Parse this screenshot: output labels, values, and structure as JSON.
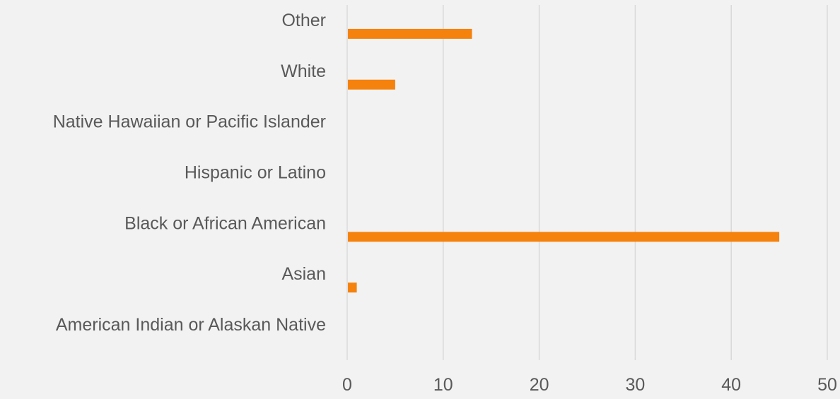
{
  "chart_data": {
    "type": "bar",
    "orientation": "horizontal",
    "title": "",
    "xlabel": "",
    "ylabel": "",
    "categories": [
      "American Indian or Alaskan Native",
      "Asian",
      "Black or African American",
      "Hispanic or Latino",
      "Native Hawaiian or Pacific Islander",
      "White",
      "Other"
    ],
    "values": [
      0,
      1,
      45,
      0,
      0,
      5,
      13
    ],
    "xlim": [
      0,
      50
    ],
    "x_ticks": [
      0,
      10,
      20,
      30,
      40,
      50
    ],
    "grid": "vertical",
    "legend": "none",
    "bar_color": "#f5820d",
    "background_color": "#f2f2f2"
  }
}
